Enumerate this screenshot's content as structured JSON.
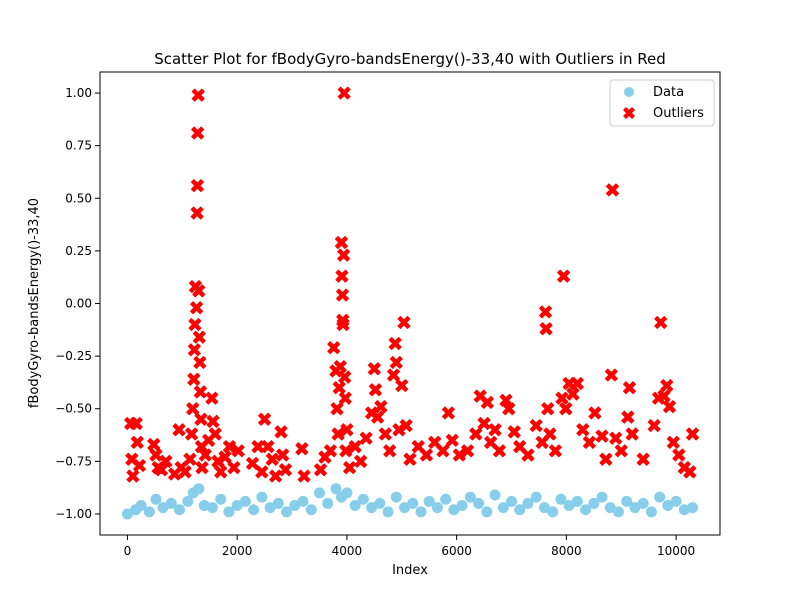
{
  "chart_data": {
    "type": "scatter",
    "title": "Scatter Plot for fBodyGyro-bandsEnergy()-33,40 with Outliers in Red",
    "xlabel": "Index",
    "ylabel": "fBodyGyro-bandsEnergy()-33,40",
    "xlim": [
      -500,
      10800
    ],
    "ylim": [
      -1.1,
      1.1
    ],
    "xticks": [
      0,
      2000,
      4000,
      6000,
      8000,
      10000
    ],
    "xtick_labels": [
      "0",
      "2000",
      "4000",
      "6000",
      "8000",
      "10000"
    ],
    "yticks": [
      -1.0,
      -0.75,
      -0.5,
      -0.25,
      0.0,
      0.25,
      0.5,
      0.75,
      1.0
    ],
    "ytick_labels": [
      "−1.00",
      "−0.75",
      "−0.50",
      "−0.25",
      "0.00",
      "0.25",
      "0.50",
      "0.75",
      "1.00"
    ],
    "grid": false,
    "legend_position": "top-right",
    "series": [
      {
        "name": "Data",
        "marker": "circle",
        "color": "#87ceeb",
        "points": [
          [
            0,
            -1.0
          ],
          [
            150,
            -0.98
          ],
          [
            250,
            -0.96
          ],
          [
            400,
            -0.99
          ],
          [
            520,
            -0.93
          ],
          [
            650,
            -0.97
          ],
          [
            800,
            -0.95
          ],
          [
            950,
            -0.98
          ],
          [
            1100,
            -0.94
          ],
          [
            1200,
            -0.9
          ],
          [
            1300,
            -0.88
          ],
          [
            1400,
            -0.96
          ],
          [
            1550,
            -0.97
          ],
          [
            1700,
            -0.93
          ],
          [
            1850,
            -0.99
          ],
          [
            2000,
            -0.96
          ],
          [
            2150,
            -0.94
          ],
          [
            2300,
            -0.98
          ],
          [
            2450,
            -0.92
          ],
          [
            2600,
            -0.97
          ],
          [
            2750,
            -0.95
          ],
          [
            2900,
            -0.99
          ],
          [
            3050,
            -0.96
          ],
          [
            3200,
            -0.94
          ],
          [
            3350,
            -0.98
          ],
          [
            3500,
            -0.9
          ],
          [
            3650,
            -0.95
          ],
          [
            3800,
            -0.88
          ],
          [
            3900,
            -0.92
          ],
          [
            4000,
            -0.9
          ],
          [
            4150,
            -0.96
          ],
          [
            4300,
            -0.93
          ],
          [
            4450,
            -0.97
          ],
          [
            4600,
            -0.95
          ],
          [
            4750,
            -0.99
          ],
          [
            4900,
            -0.92
          ],
          [
            5050,
            -0.97
          ],
          [
            5200,
            -0.95
          ],
          [
            5350,
            -0.99
          ],
          [
            5500,
            -0.94
          ],
          [
            5650,
            -0.97
          ],
          [
            5800,
            -0.93
          ],
          [
            5950,
            -0.98
          ],
          [
            6100,
            -0.96
          ],
          [
            6250,
            -0.92
          ],
          [
            6400,
            -0.95
          ],
          [
            6550,
            -0.99
          ],
          [
            6700,
            -0.91
          ],
          [
            6850,
            -0.97
          ],
          [
            7000,
            -0.94
          ],
          [
            7150,
            -0.98
          ],
          [
            7300,
            -0.95
          ],
          [
            7450,
            -0.92
          ],
          [
            7600,
            -0.97
          ],
          [
            7750,
            -0.99
          ],
          [
            7900,
            -0.93
          ],
          [
            8050,
            -0.96
          ],
          [
            8200,
            -0.94
          ],
          [
            8350,
            -0.98
          ],
          [
            8500,
            -0.95
          ],
          [
            8650,
            -0.92
          ],
          [
            8800,
            -0.97
          ],
          [
            8950,
            -0.99
          ],
          [
            9100,
            -0.94
          ],
          [
            9250,
            -0.97
          ],
          [
            9400,
            -0.95
          ],
          [
            9550,
            -0.99
          ],
          [
            9700,
            -0.92
          ],
          [
            9850,
            -0.96
          ],
          [
            10000,
            -0.94
          ],
          [
            10150,
            -0.98
          ],
          [
            10299,
            -0.97
          ]
        ]
      },
      {
        "name": "Outliers",
        "marker": "x",
        "color": "#ff0000",
        "points": [
          [
            60,
            -0.57
          ],
          [
            80,
            -0.74
          ],
          [
            100,
            -0.82
          ],
          [
            160,
            -0.57
          ],
          [
            180,
            -0.66
          ],
          [
            220,
            -0.77
          ],
          [
            480,
            -0.67
          ],
          [
            520,
            -0.72
          ],
          [
            560,
            -0.78
          ],
          [
            620,
            -0.79
          ],
          [
            700,
            -0.75
          ],
          [
            860,
            -0.81
          ],
          [
            940,
            -0.6
          ],
          [
            980,
            -0.78
          ],
          [
            1050,
            -0.8
          ],
          [
            1140,
            -0.74
          ],
          [
            1170,
            -0.62
          ],
          [
            1190,
            -0.5
          ],
          [
            1210,
            -0.36
          ],
          [
            1220,
            -0.22
          ],
          [
            1230,
            -0.1
          ],
          [
            1240,
            0.08
          ],
          [
            1260,
            -0.02
          ],
          [
            1270,
            0.43
          ],
          [
            1275,
            0.56
          ],
          [
            1280,
            0.81
          ],
          [
            1290,
            0.99
          ],
          [
            1300,
            0.06
          ],
          [
            1310,
            -0.16
          ],
          [
            1320,
            -0.28
          ],
          [
            1330,
            -0.42
          ],
          [
            1340,
            -0.55
          ],
          [
            1350,
            -0.68
          ],
          [
            1360,
            -0.78
          ],
          [
            1420,
            -0.72
          ],
          [
            1480,
            -0.65
          ],
          [
            1540,
            -0.45
          ],
          [
            1560,
            -0.56
          ],
          [
            1600,
            -0.62
          ],
          [
            1650,
            -0.75
          ],
          [
            1700,
            -0.8
          ],
          [
            1780,
            -0.73
          ],
          [
            1860,
            -0.68
          ],
          [
            1940,
            -0.78
          ],
          [
            2020,
            -0.7
          ],
          [
            2280,
            -0.76
          ],
          [
            2380,
            -0.68
          ],
          [
            2450,
            -0.8
          ],
          [
            2500,
            -0.55
          ],
          [
            2560,
            -0.68
          ],
          [
            2640,
            -0.74
          ],
          [
            2700,
            -0.82
          ],
          [
            2800,
            -0.61
          ],
          [
            2830,
            -0.72
          ],
          [
            2880,
            -0.79
          ],
          [
            3180,
            -0.69
          ],
          [
            3220,
            -0.82
          ],
          [
            3520,
            -0.79
          ],
          [
            3600,
            -0.73
          ],
          [
            3700,
            -0.7
          ],
          [
            3760,
            -0.21
          ],
          [
            3800,
            -0.32
          ],
          [
            3820,
            -0.5
          ],
          [
            3840,
            -0.62
          ],
          [
            3860,
            -0.4
          ],
          [
            3880,
            -0.3
          ],
          [
            3900,
            0.29
          ],
          [
            3910,
            0.13
          ],
          [
            3920,
            0.04
          ],
          [
            3925,
            -0.08
          ],
          [
            3930,
            -0.1
          ],
          [
            3940,
            0.23
          ],
          [
            3950,
            1.0
          ],
          [
            3960,
            -0.35
          ],
          [
            3970,
            -0.45
          ],
          [
            3980,
            -0.7
          ],
          [
            4000,
            -0.6
          ],
          [
            4050,
            -0.78
          ],
          [
            4150,
            -0.68
          ],
          [
            4250,
            -0.75
          ],
          [
            4350,
            -0.64
          ],
          [
            4450,
            -0.52
          ],
          [
            4500,
            -0.31
          ],
          [
            4520,
            -0.41
          ],
          [
            4560,
            -0.54
          ],
          [
            4620,
            -0.49
          ],
          [
            4700,
            -0.62
          ],
          [
            4780,
            -0.7
          ],
          [
            4850,
            -0.34
          ],
          [
            4880,
            -0.19
          ],
          [
            4900,
            -0.28
          ],
          [
            4950,
            -0.6
          ],
          [
            5000,
            -0.39
          ],
          [
            5040,
            -0.09
          ],
          [
            5080,
            -0.58
          ],
          [
            5150,
            -0.74
          ],
          [
            5300,
            -0.68
          ],
          [
            5450,
            -0.72
          ],
          [
            5600,
            -0.66
          ],
          [
            5750,
            -0.7
          ],
          [
            5850,
            -0.52
          ],
          [
            5920,
            -0.65
          ],
          [
            6050,
            -0.72
          ],
          [
            6200,
            -0.7
          ],
          [
            6350,
            -0.62
          ],
          [
            6430,
            -0.44
          ],
          [
            6500,
            -0.57
          ],
          [
            6560,
            -0.47
          ],
          [
            6620,
            -0.66
          ],
          [
            6700,
            -0.6
          ],
          [
            6780,
            -0.7
          ],
          [
            6900,
            -0.46
          ],
          [
            6950,
            -0.5
          ],
          [
            7050,
            -0.61
          ],
          [
            7150,
            -0.68
          ],
          [
            7300,
            -0.72
          ],
          [
            7450,
            -0.58
          ],
          [
            7560,
            -0.66
          ],
          [
            7620,
            -0.04
          ],
          [
            7630,
            -0.12
          ],
          [
            7660,
            -0.5
          ],
          [
            7700,
            -0.62
          ],
          [
            7800,
            -0.7
          ],
          [
            7920,
            -0.45
          ],
          [
            7950,
            0.13
          ],
          [
            7990,
            -0.5
          ],
          [
            8050,
            -0.38
          ],
          [
            8120,
            -0.43
          ],
          [
            8200,
            -0.38
          ],
          [
            8300,
            -0.6
          ],
          [
            8420,
            -0.66
          ],
          [
            8520,
            -0.52
          ],
          [
            8650,
            -0.63
          ],
          [
            8720,
            -0.74
          ],
          [
            8820,
            -0.34
          ],
          [
            8840,
            0.54
          ],
          [
            8900,
            -0.64
          ],
          [
            9000,
            -0.7
          ],
          [
            9120,
            -0.54
          ],
          [
            9150,
            -0.4
          ],
          [
            9200,
            -0.62
          ],
          [
            9400,
            -0.74
          ],
          [
            9600,
            -0.58
          ],
          [
            9680,
            -0.45
          ],
          [
            9720,
            -0.09
          ],
          [
            9780,
            -0.44
          ],
          [
            9830,
            -0.39
          ],
          [
            9880,
            -0.49
          ],
          [
            9950,
            -0.66
          ],
          [
            10050,
            -0.72
          ],
          [
            10150,
            -0.78
          ],
          [
            10250,
            -0.8
          ],
          [
            10300,
            -0.62
          ]
        ]
      }
    ]
  }
}
